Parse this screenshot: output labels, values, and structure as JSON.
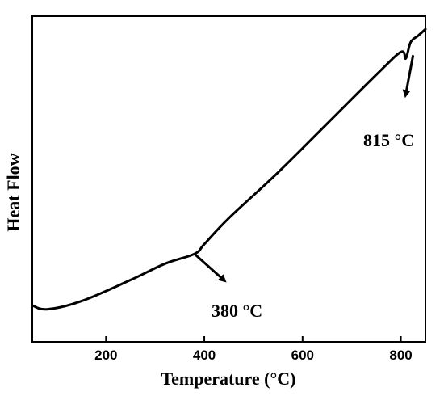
{
  "chart_data": {
    "type": "line",
    "xlabel": "Temperature (°C)",
    "ylabel": "Heat Flow",
    "xlim": [
      50,
      850
    ],
    "ylim": [
      0,
      1
    ],
    "x_ticks": [
      200,
      400,
      600,
      800
    ],
    "y_ticks": [],
    "grid": false,
    "legend": "none",
    "series": [
      {
        "color": "#000000",
        "x": [
          50,
          80,
          150,
          250,
          320,
          380,
          400,
          450,
          550,
          650,
          750,
          800,
          810,
          820,
          835,
          850
        ],
        "y": [
          0.112,
          0.1,
          0.125,
          0.19,
          0.24,
          0.27,
          0.3,
          0.38,
          0.52,
          0.67,
          0.82,
          0.89,
          0.87,
          0.92,
          0.94,
          0.96
        ]
      }
    ],
    "annotations": [
      {
        "text": "380 °C",
        "x": 380,
        "y": 0.27
      },
      {
        "text": "815 °C",
        "x": 815,
        "y": 0.89
      }
    ]
  }
}
